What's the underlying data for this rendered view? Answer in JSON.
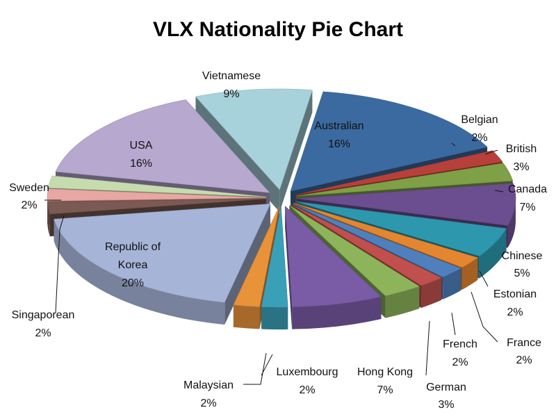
{
  "chart_data": {
    "type": "pie",
    "title": "VLX Nationality Pie Chart",
    "exploded": true,
    "three_d": true,
    "label_format": "category and percent",
    "slices": [
      {
        "category": "Australian",
        "percent": 16,
        "color": "#3b6aa0"
      },
      {
        "category": "Belgian",
        "percent": 2,
        "color": "#b8403a"
      },
      {
        "category": "British",
        "percent": 3,
        "color": "#7fa046"
      },
      {
        "category": "Canada",
        "percent": 7,
        "color": "#6b4e8f"
      },
      {
        "category": "Chinese",
        "percent": 5,
        "color": "#2d97ad"
      },
      {
        "category": "Estonian",
        "percent": 2,
        "color": "#e3862f"
      },
      {
        "category": "France",
        "percent": 2,
        "color": "#4f80bd"
      },
      {
        "category": "French",
        "percent": 2,
        "color": "#c0504d"
      },
      {
        "category": "German",
        "percent": 3,
        "color": "#8db45a"
      },
      {
        "category": "Hong Kong",
        "percent": 7,
        "color": "#7a5ba6"
      },
      {
        "category": "Luxembourg",
        "percent": 2,
        "color": "#3aa0b8"
      },
      {
        "category": "Malaysian",
        "percent": 2,
        "color": "#e8923a"
      },
      {
        "category": "Republic of Korea",
        "percent": 20,
        "color": "#a6b4d8"
      },
      {
        "category": "Singaporean",
        "percent": 2,
        "color": "#7a5a52"
      },
      {
        "category": "Sweden",
        "percent": 2,
        "color": "#e8a6a4"
      },
      {
        "category": "",
        "percent": 2,
        "color": "#c6dcae"
      },
      {
        "category": "USA",
        "percent": 16,
        "color": "#b6a8cf"
      },
      {
        "category": "Vietnamese",
        "percent": 9,
        "color": "#a7d2dc"
      }
    ]
  },
  "labels": {
    "australian_name": "Australian",
    "australian_pct": "16%",
    "belgian_name": "Belgian",
    "belgian_pct": "2%",
    "british_name": "British",
    "british_pct": "3%",
    "canada_name": "Canada",
    "canada_pct": "7%",
    "chinese_name": "Chinese",
    "chinese_pct": "5%",
    "estonian_name": "Estonian",
    "estonian_pct": "2%",
    "france_name": "France",
    "france_pct": "2%",
    "french_name": "French",
    "french_pct": "2%",
    "german_name": "German",
    "german_pct": "3%",
    "hongkong_name": "Hong Kong",
    "hongkong_pct": "7%",
    "luxembourg_name": "Luxembourg",
    "luxembourg_pct": "2%",
    "malaysian_name": "Malaysian",
    "malaysian_pct": "2%",
    "korea_line1": "Republic of",
    "korea_line2": "Korea",
    "korea_pct": "20%",
    "singaporean_name": "Singaporean",
    "singaporean_pct": "2%",
    "sweden_name": "Sweden",
    "sweden_pct": "2%",
    "usa_name": "USA",
    "usa_pct": "16%",
    "vietnamese_name": "Vietnamese",
    "vietnamese_pct": "9%"
  }
}
